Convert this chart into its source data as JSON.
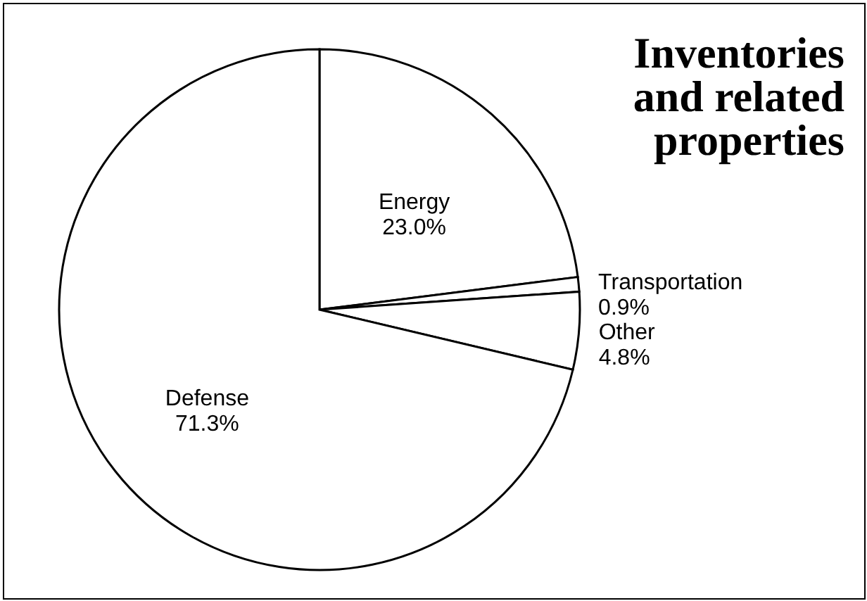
{
  "chart_data": {
    "type": "pie",
    "title": "Inventories and related properties",
    "categories": [
      "Energy",
      "Transportation",
      "Other",
      "Defense"
    ],
    "values": [
      23.0,
      0.9,
      4.8,
      71.3
    ],
    "colors": [
      "#ffffff",
      "#ffffff",
      "#ffffff",
      "#ffffff"
    ],
    "value_labels": [
      "23.0%",
      "0.9%",
      "4.8%",
      "71.3%"
    ]
  }
}
